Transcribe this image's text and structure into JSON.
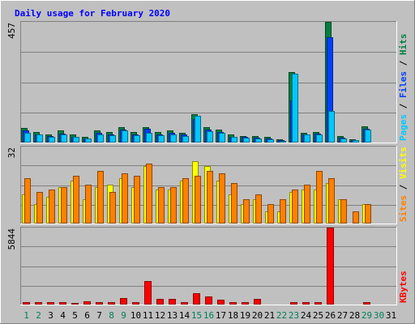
{
  "chart_data": [
    {
      "type": "bar",
      "title": "Daily usage for February 2020",
      "max_label": "457",
      "right_labels": [
        "Pages",
        "Files",
        "Hits"
      ],
      "colors": {
        "Hits": "#008040",
        "Files": "#0040ff",
        "Pages": "#00c8ff"
      },
      "categories": [
        "1",
        "2",
        "3",
        "4",
        "5",
        "6",
        "7",
        "8",
        "9",
        "10",
        "11",
        "12",
        "13",
        "14",
        "15",
        "16",
        "17",
        "18",
        "19",
        "20",
        "21",
        "22",
        "23",
        "24",
        "25",
        "26",
        "27",
        "28",
        "29",
        "30",
        "31"
      ],
      "weekend_days": [
        1,
        2,
        8,
        9,
        15,
        16,
        22,
        23,
        29,
        30
      ],
      "ylim": [
        0,
        457
      ],
      "series": [
        {
          "name": "Hits",
          "values": [
            55,
            40,
            30,
            45,
            30,
            20,
            45,
            40,
            58,
            40,
            58,
            40,
            45,
            38,
            108,
            58,
            50,
            30,
            25,
            25,
            20,
            12,
            268,
            38,
            40,
            457,
            25,
            12,
            60,
            0,
            0
          ]
        },
        {
          "name": "Files",
          "values": [
            45,
            32,
            25,
            35,
            22,
            15,
            38,
            32,
            50,
            32,
            52,
            32,
            38,
            30,
            90,
            48,
            40,
            22,
            20,
            18,
            15,
            8,
            160,
            32,
            35,
            400,
            18,
            10,
            52,
            0,
            0
          ]
        },
        {
          "name": "Pages",
          "values": [
            38,
            30,
            22,
            32,
            20,
            15,
            32,
            28,
            45,
            28,
            38,
            28,
            32,
            25,
            100,
            42,
            38,
            20,
            18,
            15,
            12,
            5,
            260,
            30,
            32,
            120,
            15,
            8,
            50,
            0,
            0
          ]
        }
      ]
    },
    {
      "type": "bar",
      "max_label": "32",
      "right_labels": [
        "Sites",
        "Visits"
      ],
      "colors": {
        "Visits": "#ffff00",
        "Sites": "#ff8000"
      },
      "ylim": [
        0,
        32
      ],
      "series": [
        {
          "name": "Visits",
          "values": [
            12,
            8,
            11,
            15,
            18,
            10,
            15,
            16,
            19,
            15,
            24,
            14,
            14,
            18,
            26,
            24,
            18,
            12,
            8,
            10,
            5,
            5,
            13,
            14,
            14,
            17,
            10,
            0,
            8,
            0,
            0
          ]
        },
        {
          "name": "Sites",
          "values": [
            19,
            13,
            14,
            15,
            20,
            16,
            22,
            13,
            21,
            20,
            25,
            15,
            15,
            19,
            20,
            22,
            21,
            17,
            10,
            12,
            8,
            10,
            14,
            16,
            22,
            19,
            10,
            5,
            8,
            0,
            0
          ]
        }
      ]
    },
    {
      "type": "bar",
      "max_label": "5844",
      "right_labels": [
        "KBytes"
      ],
      "colors": {
        "KBytes": "#ff0000"
      },
      "ylim": [
        0,
        5844
      ],
      "series": [
        {
          "name": "KBytes",
          "values": [
            180,
            180,
            180,
            180,
            120,
            250,
            180,
            180,
            520,
            180,
            1800,
            460,
            460,
            180,
            880,
            640,
            380,
            180,
            180,
            420,
            60,
            60,
            180,
            180,
            180,
            5844,
            60,
            60,
            200,
            0,
            0
          ]
        }
      ]
    }
  ]
}
